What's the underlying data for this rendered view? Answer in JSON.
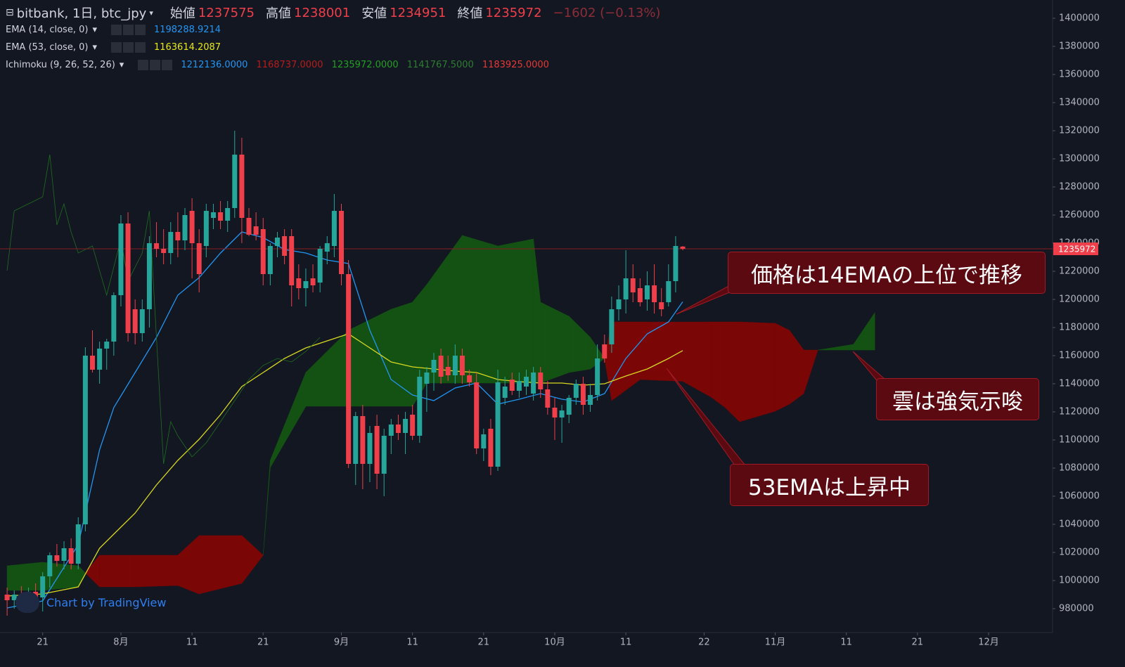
{
  "chart_data": {
    "type": "candlestick",
    "symbol": "bitbank, 1日, btc_jpy",
    "ohlc_labels": [
      "始値",
      "高値",
      "安値",
      "終値"
    ],
    "change": "−1602 (−0.13%)",
    "up_color": "#26a69a",
    "down_color": "#ef3f4a",
    "x": [
      "7/16",
      "7/17",
      "7/18",
      "7/19",
      "7/20",
      "7/21",
      "7/22",
      "7/23",
      "7/24",
      "7/25",
      "7/26",
      "7/27",
      "7/28",
      "7/29",
      "7/30",
      "7/31",
      "8/1",
      "8/2",
      "8/3",
      "8/4",
      "8/5",
      "8/6",
      "8/7",
      "8/8",
      "8/9",
      "8/10",
      "8/11",
      "8/12",
      "8/13",
      "8/14",
      "8/15",
      "8/16",
      "8/17",
      "8/18",
      "8/19",
      "8/20",
      "8/21",
      "8/22",
      "8/23",
      "8/24",
      "8/25",
      "8/26",
      "8/27",
      "8/28",
      "8/29",
      "8/30",
      "8/31",
      "9/1",
      "9/2",
      "9/3",
      "9/4",
      "9/5",
      "9/6",
      "9/7",
      "9/8",
      "9/9",
      "9/10",
      "9/11",
      "9/12",
      "9/13",
      "9/14",
      "9/15",
      "9/16",
      "9/17",
      "9/18",
      "9/19",
      "9/20",
      "9/21",
      "9/22",
      "9/23",
      "9/24",
      "9/25",
      "9/26",
      "9/27",
      "9/28",
      "9/29",
      "9/30",
      "10/1",
      "10/2",
      "10/3",
      "10/4",
      "10/5",
      "10/6",
      "10/7",
      "10/8",
      "10/9",
      "10/10",
      "10/11",
      "10/12",
      "10/13",
      "10/14",
      "10/15",
      "10/16",
      "10/17",
      "10/18",
      "10/19"
    ],
    "ohlc": [
      [
        990000,
        995000,
        975000,
        986000
      ],
      [
        986000,
        993000,
        980000,
        990000
      ],
      [
        990000,
        996000,
        984000,
        987000
      ],
      [
        987000,
        995000,
        983000,
        992000
      ],
      [
        992000,
        998000,
        985000,
        988000
      ],
      [
        988000,
        1006000,
        978000,
        1003000
      ],
      [
        1003000,
        1020000,
        995000,
        1018000
      ],
      [
        1018000,
        1026000,
        1010000,
        1014000
      ],
      [
        1014000,
        1028000,
        1008000,
        1023000
      ],
      [
        1023000,
        1030000,
        1008000,
        1012000
      ],
      [
        1012000,
        1045000,
        1008000,
        1040000
      ],
      [
        1040000,
        1166000,
        1035000,
        1160000
      ],
      [
        1160000,
        1178000,
        1148000,
        1150000
      ],
      [
        1150000,
        1170000,
        1140000,
        1165000
      ],
      [
        1165000,
        1172000,
        1150000,
        1170000
      ],
      [
        1170000,
        1205000,
        1160000,
        1203000
      ],
      [
        1203000,
        1260000,
        1195000,
        1254000
      ],
      [
        1254000,
        1262000,
        1170000,
        1176000
      ],
      [
        1193000,
        1200000,
        1168000,
        1176000
      ],
      [
        1176000,
        1200000,
        1170000,
        1193000
      ],
      [
        1193000,
        1245000,
        1180000,
        1240000
      ],
      [
        1240000,
        1255000,
        1230000,
        1236000
      ],
      [
        1236000,
        1250000,
        1225000,
        1233000
      ],
      [
        1233000,
        1255000,
        1225000,
        1248000
      ],
      [
        1248000,
        1262000,
        1230000,
        1242000
      ],
      [
        1242000,
        1265000,
        1235000,
        1260000
      ],
      [
        1263000,
        1272000,
        1215000,
        1240000
      ],
      [
        1240000,
        1250000,
        1205000,
        1218000
      ],
      [
        1238000,
        1268000,
        1230000,
        1263000
      ],
      [
        1258000,
        1268000,
        1250000,
        1262000
      ],
      [
        1262000,
        1270000,
        1250000,
        1256000
      ],
      [
        1256000,
        1270000,
        1248000,
        1265000
      ],
      [
        1265000,
        1320000,
        1258000,
        1303000
      ],
      [
        1303000,
        1315000,
        1240000,
        1258000
      ],
      [
        1258000,
        1265000,
        1245000,
        1246000
      ],
      [
        1252000,
        1262000,
        1242000,
        1246000
      ],
      [
        1250000,
        1258000,
        1210000,
        1218000
      ],
      [
        1218000,
        1240000,
        1210000,
        1238000
      ],
      [
        1238000,
        1248000,
        1230000,
        1244000
      ],
      [
        1245000,
        1250000,
        1225000,
        1231000
      ],
      [
        1245000,
        1250000,
        1195000,
        1210000
      ],
      [
        1215000,
        1225000,
        1200000,
        1208000
      ],
      [
        1208000,
        1222000,
        1195000,
        1213000
      ],
      [
        1215000,
        1225000,
        1205000,
        1210000
      ],
      [
        1212000,
        1238000,
        1205000,
        1236000
      ],
      [
        1234000,
        1245000,
        1225000,
        1240000
      ],
      [
        1238000,
        1275000,
        1230000,
        1263000
      ],
      [
        1263000,
        1268000,
        1210000,
        1218000
      ],
      [
        1218000,
        1228000,
        1080000,
        1083000
      ],
      [
        1083000,
        1120000,
        1068000,
        1117000
      ],
      [
        1117000,
        1125000,
        1065000,
        1083000
      ],
      [
        1083000,
        1110000,
        1070000,
        1105000
      ],
      [
        1110000,
        1118000,
        1065000,
        1076000
      ],
      [
        1076000,
        1108000,
        1060000,
        1103000
      ],
      [
        1103000,
        1115000,
        1090000,
        1111000
      ],
      [
        1111000,
        1118000,
        1100000,
        1105000
      ],
      [
        1105000,
        1120000,
        1090000,
        1115000
      ],
      [
        1118000,
        1125000,
        1100000,
        1103000
      ],
      [
        1103000,
        1150000,
        1098000,
        1145000
      ],
      [
        1140000,
        1152000,
        1120000,
        1148000
      ],
      [
        1148000,
        1162000,
        1135000,
        1157000
      ],
      [
        1160000,
        1165000,
        1140000,
        1145000
      ],
      [
        1152000,
        1160000,
        1142000,
        1146000
      ],
      [
        1146000,
        1168000,
        1140000,
        1160000
      ],
      [
        1160000,
        1165000,
        1140000,
        1146000
      ],
      [
        1146000,
        1150000,
        1138000,
        1141000
      ],
      [
        1141000,
        1148000,
        1090000,
        1094000
      ],
      [
        1094000,
        1108000,
        1085000,
        1104000
      ],
      [
        1108000,
        1115000,
        1075000,
        1081000
      ],
      [
        1081000,
        1150000,
        1078000,
        1141000
      ],
      [
        1130000,
        1145000,
        1125000,
        1138000
      ],
      [
        1143000,
        1148000,
        1132000,
        1135000
      ],
      [
        1135000,
        1148000,
        1130000,
        1142000
      ],
      [
        1138000,
        1150000,
        1132000,
        1145000
      ],
      [
        1133000,
        1152000,
        1128000,
        1148000
      ],
      [
        1148000,
        1152000,
        1130000,
        1136000
      ],
      [
        1136000,
        1142000,
        1118000,
        1123000
      ],
      [
        1123000,
        1130000,
        1100000,
        1116000
      ],
      [
        1116000,
        1125000,
        1098000,
        1121000
      ],
      [
        1118000,
        1132000,
        1112000,
        1130000
      ],
      [
        1130000,
        1143000,
        1125000,
        1140000
      ],
      [
        1140000,
        1145000,
        1118000,
        1125000
      ],
      [
        1125000,
        1140000,
        1120000,
        1132000
      ],
      [
        1132000,
        1168000,
        1128000,
        1158000
      ],
      [
        1168000,
        1175000,
        1155000,
        1158000
      ],
      [
        1168000,
        1202000,
        1162000,
        1193000
      ],
      [
        1193000,
        1210000,
        1185000,
        1200000
      ],
      [
        1200000,
        1235000,
        1190000,
        1215000
      ],
      [
        1215000,
        1225000,
        1198000,
        1205000
      ],
      [
        1208000,
        1215000,
        1195000,
        1198000
      ],
      [
        1200000,
        1220000,
        1192000,
        1210000
      ],
      [
        1210000,
        1225000,
        1190000,
        1198000
      ],
      [
        1198000,
        1208000,
        1188000,
        1193000
      ],
      [
        1198000,
        1225000,
        1195000,
        1213000
      ],
      [
        1213000,
        1245000,
        1205000,
        1238000
      ],
      [
        1237575,
        1238001,
        1234951,
        1235972
      ]
    ],
    "series": [
      {
        "name": "EMA (14, close, 0)",
        "color": "#2196f3",
        "x": [
          "7/16",
          "7/21",
          "7/26",
          "7/29",
          "7/31",
          "8/3",
          "8/6",
          "8/9",
          "8/12",
          "8/15",
          "8/18",
          "8/21",
          "8/24",
          "8/27",
          "8/30",
          "9/2",
          "9/5",
          "9/8",
          "9/11",
          "9/14",
          "9/17",
          "9/20",
          "9/23",
          "9/26",
          "9/29",
          "10/2",
          "10/5",
          "10/8",
          "10/11",
          "10/14",
          "10/17",
          "10/19"
        ],
        "values": [
          980500,
          985500,
          1025500,
          1093000,
          1123000,
          1148000,
          1173000,
          1203000,
          1215500,
          1233000,
          1248000,
          1244000,
          1235500,
          1233000,
          1228000,
          1225500,
          1178000,
          1143000,
          1132000,
          1128000,
          1137000,
          1140500,
          1125500,
          1129000,
          1133000,
          1129000,
          1127000,
          1133000,
          1158000,
          1175500,
          1184000,
          1198288.9214
        ]
      },
      {
        "name": "EMA (53, close, 0)",
        "color": "#d8d820",
        "x": [
          "7/16",
          "7/21",
          "7/26",
          "7/29",
          "7/31",
          "8/3",
          "8/6",
          "8/9",
          "8/12",
          "8/15",
          "8/18",
          "8/21",
          "8/24",
          "8/27",
          "8/30",
          "9/2",
          "9/5",
          "9/8",
          "9/11",
          "9/14",
          "9/17",
          "9/20",
          "9/23",
          "9/26",
          "9/29",
          "10/2",
          "10/5",
          "10/8",
          "10/11",
          "10/14",
          "10/17",
          "10/19"
        ],
        "values": [
          989000,
          990500,
          995500,
          1023000,
          1033000,
          1048000,
          1068000,
          1085500,
          1100500,
          1118000,
          1138000,
          1148000,
          1158000,
          1165500,
          1170500,
          1175500,
          1165500,
          1155500,
          1152000,
          1150500,
          1149000,
          1148000,
          1143000,
          1141500,
          1140500,
          1140500,
          1139000,
          1140000,
          1145500,
          1150500,
          1158000,
          1163614.2087
        ]
      },
      {
        "color": "#1f6e1f",
        "x": [
          "7/16",
          "7/17",
          "7/19",
          "7/21",
          "7/22",
          "7/23",
          "7/24",
          "7/25",
          "7/26",
          "7/28",
          "7/30",
          "8/1",
          "8/2",
          "8/4",
          "8/5",
          "8/7",
          "8/8",
          "8/9",
          "8/11",
          "8/13",
          "8/15",
          "8/17",
          "8/19",
          "8/21",
          "8/23",
          "8/25",
          "8/27",
          "8/29"
        ],
        "values": [
          1220500,
          1263000,
          1268000,
          1273000,
          1303000,
          1253000,
          1268000,
          1248000,
          1233000,
          1238000,
          1203000,
          1243000,
          1213000,
          1233000,
          1263000,
          1083000,
          1113000,
          1103000,
          1088000,
          1098000,
          1113000,
          1128000,
          1143000,
          1153000,
          1158000,
          1155500,
          1163000,
          1173000
        ]
      }
    ],
    "cloud": {
      "up_color": "#145214",
      "down_color": "#7a0606",
      "x": [
        "7/16",
        "7/21",
        "7/26",
        "7/27",
        "7/29",
        "8/3",
        "8/9",
        "8/12",
        "8/18",
        "8/21",
        "8/22",
        "8/27",
        "8/30",
        "9/2",
        "9/8",
        "9/11",
        "9/13",
        "9/18",
        "9/23",
        "9/28",
        "9/29",
        "10/3",
        "10/6",
        "10/8",
        "10/9",
        "10/13",
        "10/19",
        "10/23",
        "10/25",
        "10/27",
        "11/1",
        "11/3",
        "11/5",
        "11/7",
        "11/12",
        "11/15"
      ],
      "span_a": [
        1010500,
        1013000,
        1010500,
        1005500,
        995500,
        995500,
        996500,
        990500,
        998000,
        1018000,
        1085500,
        1148000,
        1163000,
        1178000,
        1193000,
        1198000,
        1210500,
        1245500,
        1238000,
        1243000,
        1198000,
        1188000,
        1173000,
        1158000,
        1128000,
        1143000,
        1141767.5,
        1130500,
        1123000,
        1113000,
        1120500,
        1125500,
        1133000,
        1164000,
        1168000,
        1190500
      ],
      "span_b": [
        993000,
        993000,
        995500,
        1005500,
        1018000,
        1018000,
        1018000,
        1032000,
        1032000,
        1018000,
        1080500,
        1124000,
        1124000,
        1124000,
        1124000,
        1124000,
        1140500,
        1140500,
        1140500,
        1140500,
        1140500,
        1148000,
        1150500,
        1158000,
        1184000,
        1184000,
        1183925,
        1184000,
        1184000,
        1184000,
        1183000,
        1178000,
        1164000,
        1164000,
        1164000,
        1164000
      ]
    },
    "ichimoku": {
      "name": "Ichimoku (9, 26, 52, 26)",
      "values": [
        1212136,
        1168737,
        1235972,
        1141767.5,
        1183925
      ],
      "value_labels": [
        "1212136.0000",
        "1168737.0000",
        "1235972.0000",
        "1141767.5000",
        "1183925.0000"
      ],
      "colors": [
        "#2196f3",
        "#b71c1c",
        "#22a022",
        "#2e7d32",
        "#e53935"
      ]
    },
    "ylim": [
      963000,
      1413000
    ],
    "yticks": [
      980000,
      1000000,
      1020000,
      1040000,
      1060000,
      1080000,
      1100000,
      1120000,
      1140000,
      1160000,
      1180000,
      1200000,
      1220000,
      1240000,
      1260000,
      1280000,
      1300000,
      1320000,
      1340000,
      1360000,
      1380000,
      1400000
    ],
    "xlim": [
      "7/15",
      "12/10"
    ],
    "xticks": [
      {
        "value": "7/21",
        "label": "21"
      },
      {
        "value": "8/1",
        "label": "8月"
      },
      {
        "value": "8/11",
        "label": "11"
      },
      {
        "value": "8/21",
        "label": "21"
      },
      {
        "value": "9/1",
        "label": "9月"
      },
      {
        "value": "9/11",
        "label": "11"
      },
      {
        "value": "9/21",
        "label": "21"
      },
      {
        "value": "10/1",
        "label": "10月"
      },
      {
        "value": "10/11",
        "label": "11"
      },
      {
        "value": "10/22",
        "label": "22"
      },
      {
        "value": "11/1",
        "label": "11月"
      },
      {
        "value": "11/11",
        "label": "11"
      },
      {
        "value": "11/21",
        "label": "21"
      },
      {
        "value": "12/1",
        "label": "12月"
      }
    ],
    "annotations": [
      "価格は14EMAの上位で推移",
      "雲は強気示唆",
      "53EMAは上昇中"
    ],
    "watermark": "Chart by TradingView"
  }
}
